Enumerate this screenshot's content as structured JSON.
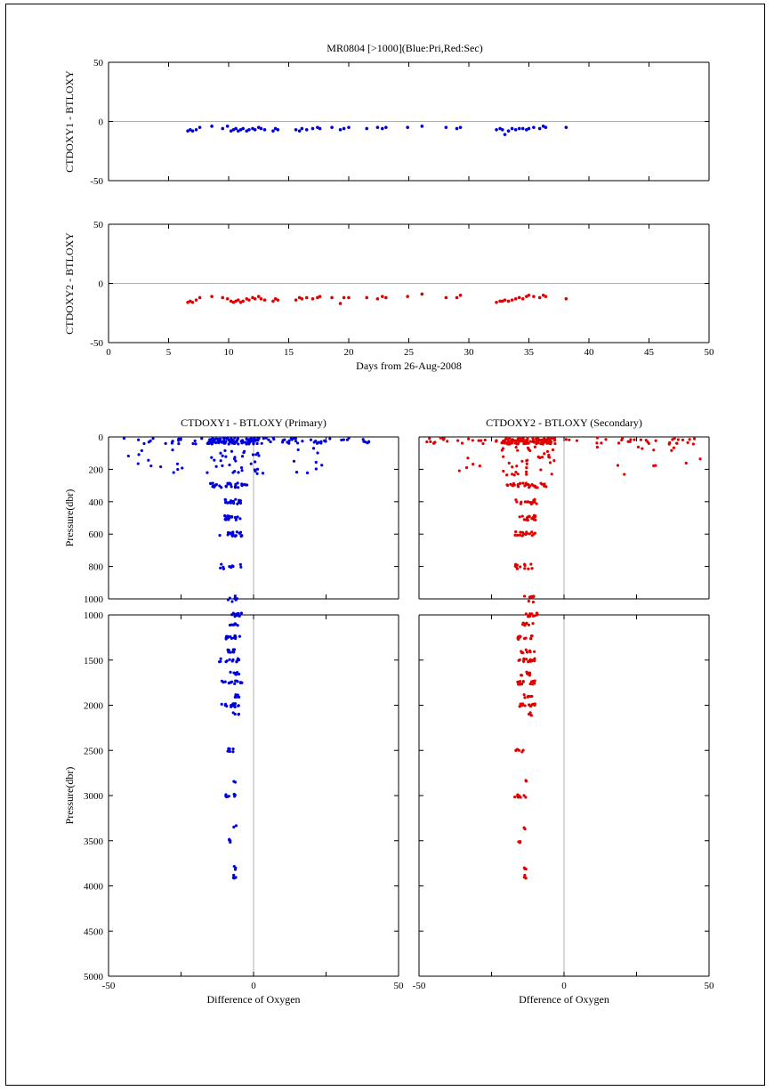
{
  "figure_title": "MR0804 [>1000](Blue:Pri,Red:Sec)",
  "colors": {
    "primary": "#0000dd",
    "secondary": "#e00000",
    "zero_line": "#b0b0b0",
    "axis": "#000000"
  },
  "chart_data": [
    {
      "id": "ts_primary",
      "type": "scatter",
      "ylabel": "CTDOXY1 - BTLOXY",
      "xlabel": "",
      "xlim": [
        0,
        50
      ],
      "ylim": [
        -50,
        50
      ],
      "xticks": [
        0,
        5,
        10,
        15,
        20,
        25,
        30,
        35,
        40,
        45,
        50
      ],
      "yticks": [
        -50,
        0,
        50
      ],
      "series": [
        {
          "color": "primary",
          "x": [
            6.6,
            6.8,
            7.0,
            7.3,
            7.6,
            8.6,
            9.5,
            9.9,
            10.2,
            10.4,
            10.6,
            10.8,
            11.0,
            11.2,
            11.5,
            11.7,
            12.0,
            12.2,
            12.5,
            12.7,
            13.0,
            13.7,
            13.9,
            14.1,
            15.6,
            15.9,
            16.1,
            16.5,
            17.0,
            17.4,
            17.6,
            18.6,
            19.3,
            19.6,
            20.0,
            21.5,
            22.4,
            22.8,
            23.1,
            24.9,
            26.1,
            28.1,
            29.0,
            29.3,
            32.3,
            32.6,
            32.8,
            33.0,
            33.3,
            33.6,
            33.9,
            34.2,
            34.5,
            34.8,
            35.0,
            35.4,
            35.9,
            36.2,
            36.4,
            38.1
          ],
          "y": [
            -8,
            -7,
            -8,
            -7,
            -5,
            -4,
            -6,
            -4,
            -8,
            -7,
            -6,
            -8,
            -7,
            -6,
            -8,
            -7,
            -6,
            -7,
            -5,
            -6,
            -7,
            -8,
            -6,
            -7,
            -7,
            -8,
            -6,
            -7,
            -6,
            -5,
            -6,
            -5,
            -7,
            -6,
            -5,
            -6,
            -5,
            -6,
            -5,
            -5,
            -4,
            -5,
            -6,
            -5,
            -7,
            -6,
            -7,
            -11,
            -8,
            -6,
            -7,
            -6,
            -6,
            -7,
            -6,
            -5,
            -6,
            -4,
            -5,
            -5
          ]
        }
      ]
    },
    {
      "id": "ts_secondary",
      "type": "scatter",
      "ylabel": "CTDOXY2 - BTLOXY",
      "xlabel": "Days from 26-Aug-2008",
      "xlim": [
        0,
        50
      ],
      "ylim": [
        -50,
        50
      ],
      "xticks": [
        0,
        5,
        10,
        15,
        20,
        25,
        30,
        35,
        40,
        45,
        50
      ],
      "yticks": [
        -50,
        0,
        50
      ],
      "series": [
        {
          "color": "secondary",
          "x": [
            6.6,
            6.8,
            7.0,
            7.3,
            7.6,
            8.6,
            9.5,
            9.9,
            10.2,
            10.4,
            10.6,
            10.8,
            11.0,
            11.2,
            11.5,
            11.7,
            12.0,
            12.2,
            12.5,
            12.7,
            13.0,
            13.7,
            13.9,
            14.1,
            15.6,
            15.9,
            16.1,
            16.5,
            17.0,
            17.4,
            17.6,
            18.6,
            19.3,
            19.6,
            20.0,
            21.5,
            22.4,
            22.8,
            23.1,
            24.9,
            26.1,
            28.1,
            29.0,
            29.3,
            32.3,
            32.6,
            32.8,
            33.0,
            33.3,
            33.6,
            33.9,
            34.2,
            34.5,
            34.8,
            35.0,
            35.4,
            35.9,
            36.2,
            36.4,
            38.1
          ],
          "y": [
            -16,
            -15,
            -16,
            -14,
            -12,
            -11,
            -12,
            -13,
            -15,
            -16,
            -15,
            -14,
            -16,
            -15,
            -13,
            -14,
            -12,
            -13,
            -11,
            -13,
            -14,
            -15,
            -13,
            -14,
            -14,
            -12,
            -13,
            -12,
            -13,
            -12,
            -11,
            -12,
            -17,
            -12,
            -12,
            -12,
            -13,
            -11,
            -12,
            -11,
            -9,
            -12,
            -12,
            -10,
            -16,
            -15,
            -15,
            -14,
            -15,
            -14,
            -13,
            -12,
            -13,
            -11,
            -10,
            -11,
            -12,
            -10,
            -11,
            -13
          ]
        }
      ]
    },
    {
      "id": "upper_left",
      "type": "scatter",
      "title": "CTDOXY1 - BTLOXY (Primary)",
      "ylabel": "Pressure(dbr)",
      "xlim": [
        -50,
        50
      ],
      "ylim": [
        0,
        1000
      ],
      "y_inverted": true,
      "yticks": [
        0,
        200,
        400,
        600,
        800,
        1000
      ],
      "series": [
        {
          "color": "primary",
          "distribution": "surface_spread",
          "clusters": [
            {
              "p": 30,
              "xmin": -45,
              "xmax": 40,
              "n": 160
            },
            {
              "p": 150,
              "xmin": -44,
              "xmax": 26,
              "n": 55
            },
            {
              "p": 300,
              "xmin": -15,
              "xmax": -2,
              "n": 30
            },
            {
              "p": 400,
              "xmin": -11,
              "xmax": -4,
              "n": 18
            },
            {
              "p": 500,
              "xmin": -10,
              "xmax": -4,
              "n": 18
            },
            {
              "p": 600,
              "xmin": -12,
              "xmax": -4,
              "n": 18
            },
            {
              "p": 800,
              "xmin": -12,
              "xmax": -4,
              "n": 12
            },
            {
              "p": 1000,
              "xmin": -9,
              "xmax": -5,
              "n": 8
            }
          ]
        }
      ]
    },
    {
      "id": "upper_right",
      "type": "scatter",
      "title": "CTDOXY2 - BTLOXY (Secondary)",
      "ylabel": "",
      "xlim": [
        -50,
        50
      ],
      "ylim": [
        0,
        1000
      ],
      "y_inverted": true,
      "yticks": [
        0,
        200,
        400,
        600,
        800,
        1000
      ],
      "series": [
        {
          "color": "secondary",
          "distribution": "surface_spread",
          "clusters": [
            {
              "p": 30,
              "xmin": -48,
              "xmax": 45,
              "n": 160
            },
            {
              "p": 150,
              "xmin": -48,
              "xmax": 48,
              "n": 55
            },
            {
              "p": 300,
              "xmin": -20,
              "xmax": -6,
              "n": 30
            },
            {
              "p": 400,
              "xmin": -17,
              "xmax": -9,
              "n": 18
            },
            {
              "p": 500,
              "xmin": -16,
              "xmax": -9,
              "n": 18
            },
            {
              "p": 600,
              "xmin": -17,
              "xmax": -9,
              "n": 18
            },
            {
              "p": 800,
              "xmin": -18,
              "xmax": -11,
              "n": 12
            },
            {
              "p": 1000,
              "xmin": -14,
              "xmax": -10,
              "n": 8
            }
          ]
        }
      ]
    },
    {
      "id": "lower_left",
      "type": "scatter",
      "ylabel": "Pressure(dbr)",
      "xlabel": "Difference of Oxygen",
      "xlim": [
        -50,
        50
      ],
      "ylim": [
        1000,
        5000
      ],
      "y_inverted": true,
      "xticks": [
        -50,
        0,
        50
      ],
      "yticks": [
        1000,
        1500,
        2000,
        2500,
        3000,
        3500,
        4000,
        4500,
        5000
      ],
      "series": [
        {
          "color": "primary",
          "distribution": "deep",
          "clusters": [
            {
              "p": 1000,
              "xmin": -8,
              "xmax": -4,
              "n": 10
            },
            {
              "p": 1100,
              "xmin": -9,
              "xmax": -5,
              "n": 8
            },
            {
              "p": 1250,
              "xmin": -10,
              "xmax": -4,
              "n": 14
            },
            {
              "p": 1400,
              "xmin": -9,
              "xmax": -5,
              "n": 8
            },
            {
              "p": 1500,
              "xmin": -12,
              "xmax": -4,
              "n": 14
            },
            {
              "p": 1650,
              "xmin": -9,
              "xmax": -5,
              "n": 8
            },
            {
              "p": 1750,
              "xmin": -11,
              "xmax": -4,
              "n": 14
            },
            {
              "p": 1900,
              "xmin": -8,
              "xmax": -5,
              "n": 6
            },
            {
              "p": 2000,
              "xmin": -11,
              "xmax": -5,
              "n": 14
            },
            {
              "p": 2100,
              "xmin": -7,
              "xmax": -5,
              "n": 4
            },
            {
              "p": 2500,
              "xmin": -9,
              "xmax": -7,
              "n": 6
            },
            {
              "p": 2850,
              "xmin": -7,
              "xmax": -6,
              "n": 2
            },
            {
              "p": 3000,
              "xmin": -10,
              "xmax": -6,
              "n": 8
            },
            {
              "p": 3350,
              "xmin": -7,
              "xmax": -6,
              "n": 2
            },
            {
              "p": 3500,
              "xmin": -9,
              "xmax": -8,
              "n": 4
            },
            {
              "p": 3800,
              "xmin": -7,
              "xmax": -6,
              "n": 3
            },
            {
              "p": 3900,
              "xmin": -7,
              "xmax": -6,
              "n": 4
            }
          ]
        }
      ]
    },
    {
      "id": "lower_right",
      "type": "scatter",
      "ylabel": "",
      "xlabel": "Dfference of Oxygen",
      "xlim": [
        -50,
        50
      ],
      "ylim": [
        1000,
        5000
      ],
      "y_inverted": true,
      "xticks": [
        -50,
        0,
        50
      ],
      "yticks": [
        1000,
        1500,
        2000,
        2500,
        3000,
        3500,
        4000,
        4500,
        5000
      ],
      "series": [
        {
          "color": "secondary",
          "distribution": "deep",
          "clusters": [
            {
              "p": 1000,
              "xmin": -15,
              "xmax": -9,
              "n": 10
            },
            {
              "p": 1100,
              "xmin": -16,
              "xmax": -10,
              "n": 8
            },
            {
              "p": 1250,
              "xmin": -16,
              "xmax": -10,
              "n": 14
            },
            {
              "p": 1400,
              "xmin": -15,
              "xmax": -10,
              "n": 8
            },
            {
              "p": 1500,
              "xmin": -16,
              "xmax": -10,
              "n": 14
            },
            {
              "p": 1650,
              "xmin": -15,
              "xmax": -11,
              "n": 8
            },
            {
              "p": 1750,
              "xmin": -16,
              "xmax": -10,
              "n": 14
            },
            {
              "p": 1900,
              "xmin": -14,
              "xmax": -11,
              "n": 6
            },
            {
              "p": 2000,
              "xmin": -17,
              "xmax": -10,
              "n": 14
            },
            {
              "p": 2100,
              "xmin": -13,
              "xmax": -11,
              "n": 4
            },
            {
              "p": 2500,
              "xmin": -17,
              "xmax": -14,
              "n": 6
            },
            {
              "p": 2850,
              "xmin": -14,
              "xmax": -13,
              "n": 2
            },
            {
              "p": 3000,
              "xmin": -17,
              "xmax": -13,
              "n": 8
            },
            {
              "p": 3350,
              "xmin": -14,
              "xmax": -13,
              "n": 2
            },
            {
              "p": 3500,
              "xmin": -16,
              "xmax": -15,
              "n": 4
            },
            {
              "p": 3800,
              "xmin": -14,
              "xmax": -13,
              "n": 3
            },
            {
              "p": 3900,
              "xmin": -14,
              "xmax": -13,
              "n": 4
            }
          ]
        }
      ]
    }
  ]
}
